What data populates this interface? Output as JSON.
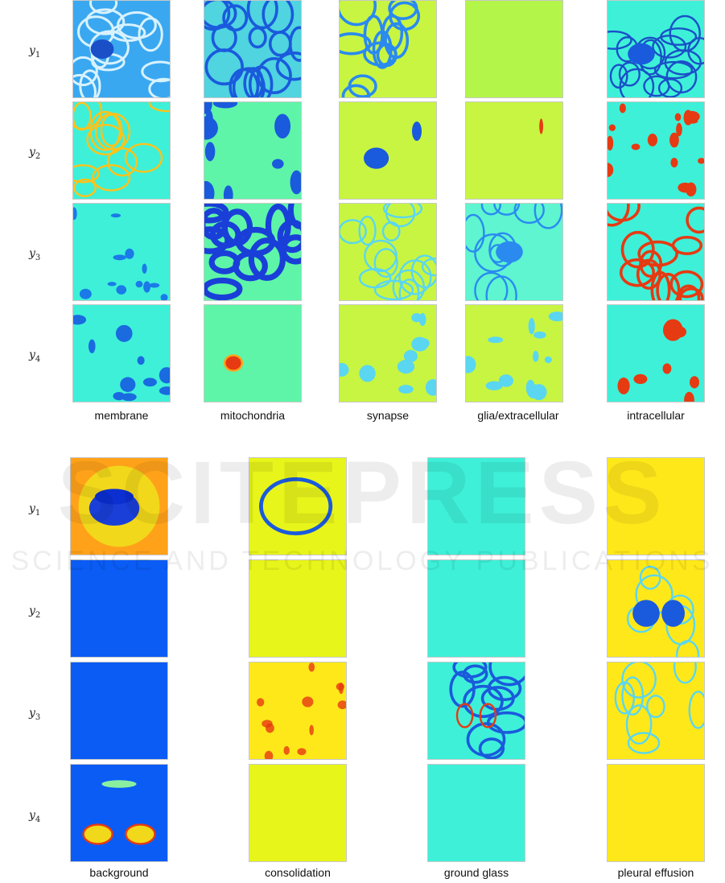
{
  "panel_a": {
    "rows": [
      {
        "label_base": "y",
        "label_sub": "1"
      },
      {
        "label_base": "y",
        "label_sub": "2"
      },
      {
        "label_base": "y",
        "label_sub": "3"
      },
      {
        "label_base": "y",
        "label_sub": "4"
      }
    ],
    "columns": [
      "membrane",
      "mitochondria",
      "synapse",
      "glia/extracellular",
      "intracellular"
    ]
  },
  "panel_b": {
    "rows": [
      {
        "label_base": "y",
        "label_sub": "1"
      },
      {
        "label_base": "y",
        "label_sub": "2"
      },
      {
        "label_base": "y",
        "label_sub": "3"
      },
      {
        "label_base": "y",
        "label_sub": "4"
      }
    ],
    "columns": [
      "background",
      "consolidation",
      "ground glass",
      "pleural effusion"
    ]
  },
  "colors": {
    "cyan": "#3ef0d8",
    "teal_green": "#5ef5a8",
    "yellow_green": "#c8f542",
    "lime": "#b4f54a",
    "blue": "#1a5adc",
    "deep_blue": "#0b2fd0",
    "royal_blue": "#0a5cf5",
    "yellow": "#f2f01a",
    "gold": "#ffe81a",
    "red": "#e63a12",
    "orange": "#ffa21a"
  },
  "watermark": {
    "title": "SCITEPRESS",
    "subtitle": "SCIENCE AND TECHNOLOGY PUBLICATIONS"
  }
}
